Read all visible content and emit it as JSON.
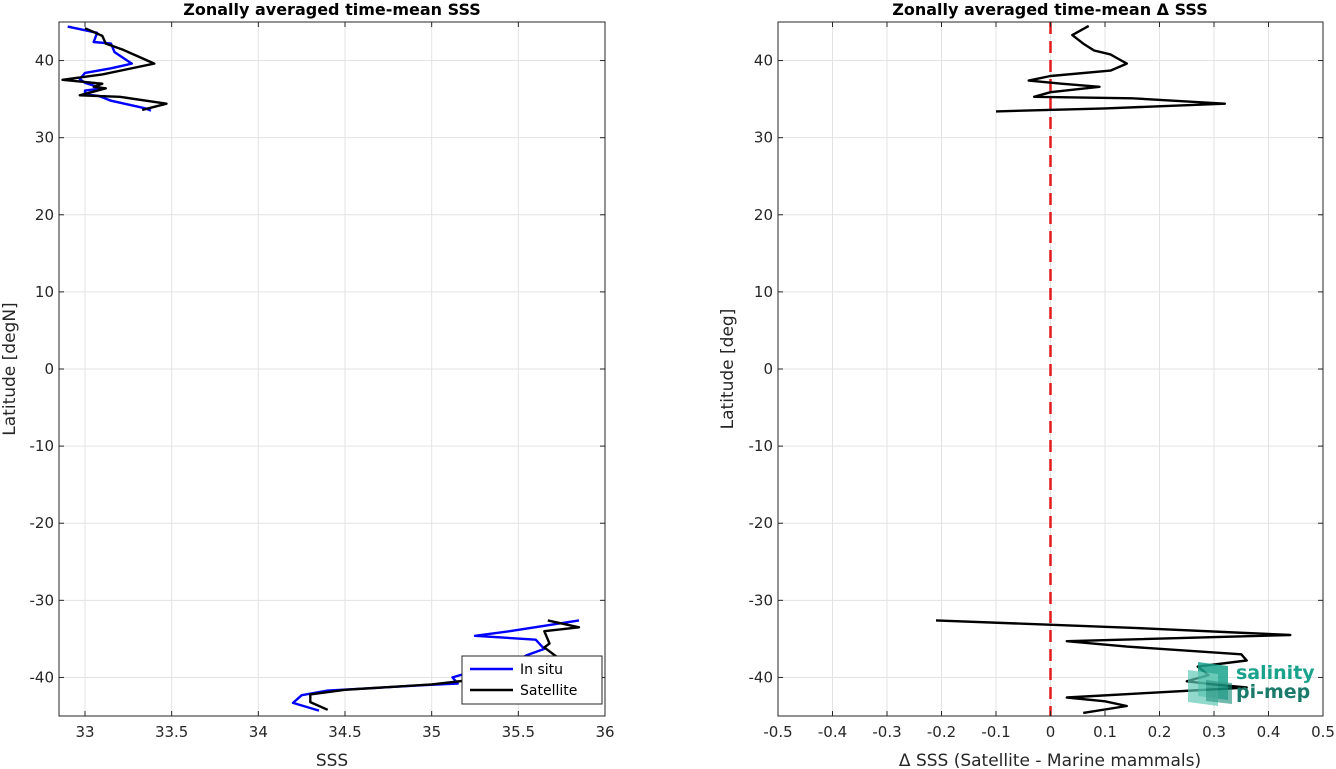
{
  "chart_data": [
    {
      "type": "line",
      "title": "Zonally averaged time-mean SSS",
      "xlabel": "SSS",
      "ylabel": "Latitude [degN]",
      "xlim": [
        32.85,
        36
      ],
      "ylim": [
        -45,
        45
      ],
      "xticks": [
        33,
        33.5,
        34,
        34.5,
        35,
        35.5,
        36
      ],
      "xtick_labels": [
        "33",
        "33.5",
        "34",
        "34.5",
        "35",
        "35.5",
        "36"
      ],
      "yticks": [
        40,
        30,
        20,
        10,
        0,
        -10,
        -20,
        -30,
        -40
      ],
      "ytick_labels": [
        "40",
        "30",
        "20",
        "10",
        "0",
        "-10",
        "-20",
        "-30",
        "-40"
      ],
      "grid": true,
      "legend_position": "bottom-right",
      "series": [
        {
          "name": "In situ",
          "color": "#0000ff",
          "segments": [
            [
              [
                32.9,
                44.4
              ],
              [
                33.07,
                43.6
              ],
              [
                33.05,
                42.4
              ],
              [
                33.15,
                42.2
              ],
              [
                33.17,
                41.1
              ],
              [
                33.27,
                39.6
              ],
              [
                33.15,
                39.0
              ],
              [
                33.0,
                38.4
              ],
              [
                32.97,
                37.6
              ],
              [
                33.0,
                37.1
              ],
              [
                33.1,
                36.4
              ],
              [
                33.0,
                36.1
              ],
              [
                33.0,
                35.6
              ],
              [
                33.08,
                35.4
              ],
              [
                33.15,
                34.8
              ],
              [
                33.35,
                33.8
              ],
              [
                33.38,
                33.5
              ]
            ],
            [
              [
                35.85,
                -32.6
              ],
              [
                35.45,
                -34.0
              ],
              [
                35.25,
                -34.6
              ],
              [
                35.6,
                -35.1
              ],
              [
                35.65,
                -36.3
              ],
              [
                35.55,
                -37.1
              ],
              [
                35.47,
                -38.1
              ],
              [
                35.4,
                -39.2
              ],
              [
                35.18,
                -39.6
              ],
              [
                35.12,
                -40.0
              ],
              [
                35.15,
                -40.8
              ],
              [
                34.95,
                -41.0
              ],
              [
                34.4,
                -41.7
              ],
              [
                34.25,
                -42.3
              ],
              [
                34.2,
                -43.3
              ],
              [
                34.35,
                -44.3
              ]
            ]
          ]
        },
        {
          "name": "Satellite",
          "color": "#000000",
          "segments": [
            [
              [
                33.0,
                44.2
              ],
              [
                33.1,
                43.2
              ],
              [
                33.12,
                42.2
              ],
              [
                33.22,
                41.4
              ],
              [
                33.32,
                40.4
              ],
              [
                33.4,
                39.6
              ],
              [
                33.25,
                38.9
              ],
              [
                33.1,
                38.2
              ],
              [
                32.87,
                37.5
              ],
              [
                33.1,
                37.0
              ],
              [
                33.05,
                36.6
              ],
              [
                33.12,
                36.4
              ],
              [
                32.97,
                35.5
              ],
              [
                33.2,
                35.3
              ],
              [
                33.47,
                34.4
              ],
              [
                33.33,
                33.6
              ]
            ],
            [
              [
                35.67,
                -32.6
              ],
              [
                35.85,
                -33.5
              ],
              [
                35.65,
                -34.0
              ],
              [
                35.68,
                -35.6
              ],
              [
                35.65,
                -36.1
              ],
              [
                35.75,
                -37.8
              ],
              [
                35.5,
                -38.6
              ],
              [
                35.25,
                -39.1
              ],
              [
                35.2,
                -39.5
              ],
              [
                35.2,
                -40.4
              ],
              [
                35.0,
                -40.9
              ],
              [
                34.5,
                -41.6
              ],
              [
                34.3,
                -42.2
              ],
              [
                34.3,
                -43.2
              ],
              [
                34.4,
                -44.2
              ]
            ]
          ]
        }
      ]
    },
    {
      "type": "line",
      "title": "Zonally averaged time-mean Δ SSS",
      "xlabel": "Δ SSS (Satellite - Marine mammals)",
      "ylabel": "Latitude [deg]",
      "xlim": [
        -0.5,
        0.5
      ],
      "ylim": [
        -45,
        45
      ],
      "xticks": [
        -0.5,
        -0.4,
        -0.3,
        -0.2,
        -0.1,
        0,
        0.1,
        0.2,
        0.3,
        0.4,
        0.5
      ],
      "xtick_labels": [
        "-0.5",
        "-0.4",
        "-0.3",
        "-0.2",
        "-0.1",
        "0",
        "0.1",
        "0.2",
        "0.3",
        "0.4",
        "0.5"
      ],
      "yticks": [
        40,
        30,
        20,
        10,
        0,
        -10,
        -20,
        -30,
        -40
      ],
      "ytick_labels": [
        "40",
        "30",
        "20",
        "10",
        "0",
        "-10",
        "-20",
        "-30",
        "-40"
      ],
      "grid": true,
      "reference_line": {
        "x": 0,
        "color": "#e41a1c",
        "style": "dashed"
      },
      "series": [
        {
          "color": "#000000",
          "segments": [
            [
              [
                0.07,
                44.5
              ],
              [
                0.04,
                43.3
              ],
              [
                0.06,
                42.2
              ],
              [
                0.08,
                41.3
              ],
              [
                0.11,
                40.8
              ],
              [
                0.12,
                40.4
              ],
              [
                0.14,
                39.6
              ],
              [
                0.11,
                38.7
              ],
              [
                0.0,
                38.0
              ],
              [
                -0.04,
                37.4
              ],
              [
                0.02,
                37.0
              ],
              [
                0.09,
                36.6
              ],
              [
                0.0,
                35.9
              ],
              [
                -0.03,
                35.3
              ],
              [
                0.15,
                35.1
              ],
              [
                0.32,
                34.4
              ],
              [
                0.1,
                33.8
              ],
              [
                -0.1,
                33.4
              ]
            ],
            [
              [
                -0.21,
                -32.6
              ],
              [
                0.16,
                -33.6
              ],
              [
                0.44,
                -34.5
              ],
              [
                0.03,
                -35.3
              ],
              [
                0.14,
                -36.0
              ],
              [
                0.35,
                -37.0
              ],
              [
                0.36,
                -37.8
              ],
              [
                0.27,
                -38.6
              ],
              [
                0.29,
                -39.7
              ],
              [
                0.25,
                -40.5
              ],
              [
                0.3,
                -40.9
              ],
              [
                0.36,
                -41.3
              ],
              [
                0.18,
                -42.0
              ],
              [
                0.03,
                -42.6
              ],
              [
                0.1,
                -43.1
              ],
              [
                0.14,
                -43.7
              ],
              [
                0.06,
                -44.6
              ]
            ]
          ]
        }
      ]
    }
  ],
  "legend": {
    "items": [
      {
        "label": "In situ",
        "color": "#0000ff"
      },
      {
        "label": "Satellite",
        "color": "#000000"
      }
    ]
  },
  "logo": {
    "line1": "salinity",
    "line2": "pi-mep",
    "color": "#1aa38c"
  }
}
